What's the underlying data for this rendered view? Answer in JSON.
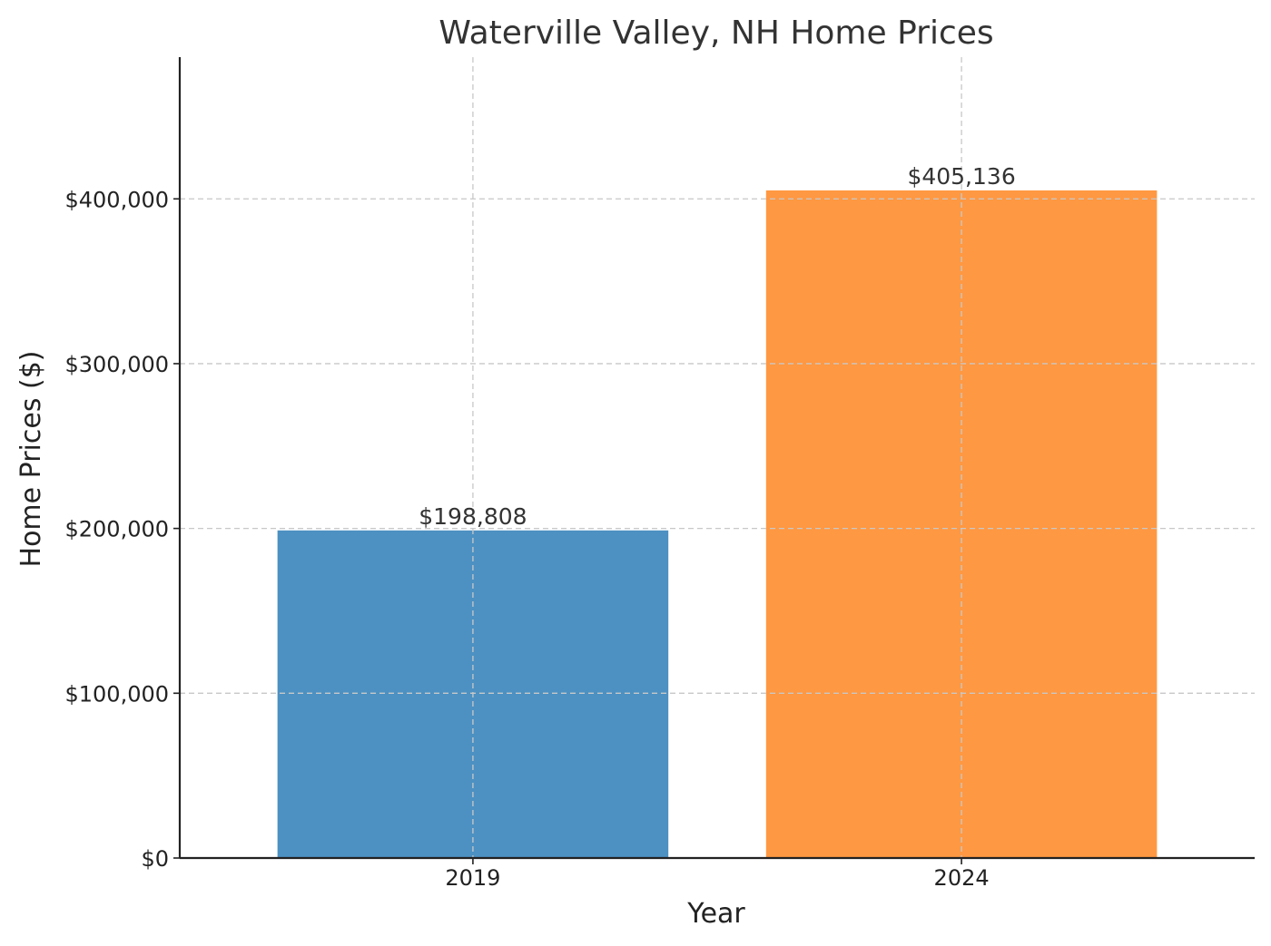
{
  "chart_data": {
    "type": "bar",
    "title": "Waterville Valley, NH Home Prices",
    "xlabel": "Year",
    "ylabel": "Home Prices ($)",
    "categories": [
      "2019",
      "2024"
    ],
    "values": [
      198808,
      405136
    ],
    "data_labels": [
      "$198,808",
      "$405,136"
    ],
    "colors": [
      "#4c91c2",
      "#ff9842"
    ],
    "ylim": [
      0,
      486000
    ],
    "yticks": [
      0,
      100000,
      200000,
      300000,
      400000
    ],
    "ytick_labels": [
      "$0",
      "$100,000",
      "$200,000",
      "$300,000",
      "$400,000"
    ],
    "grid": true
  }
}
